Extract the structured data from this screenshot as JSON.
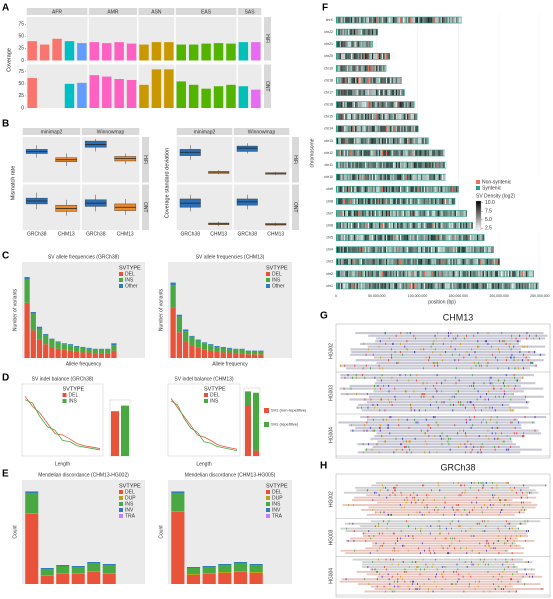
{
  "chart_data": [
    {
      "type": "facet_bar",
      "label": "A",
      "ylabel": "Coverage",
      "rows": [
        "HiFi",
        "ONT"
      ],
      "ylim": [
        0,
        90
      ],
      "yticks": [
        0,
        25,
        50,
        75
      ],
      "facets": [
        {
          "name": "AFR",
          "colors": [
            "#f8766d",
            "#f8766d",
            "#f8766d",
            "#00bfc4",
            "#619cff"
          ],
          "values": [
            [
              40,
              33,
              45,
              40,
              36
            ],
            [
              62,
              0,
              0,
              50,
              52
            ]
          ]
        },
        {
          "name": "AMR",
          "colors": [
            "#ff61c3",
            "#ff61c3",
            "#ff61c3",
            "#ff61c3"
          ],
          "values": [
            [
              38,
              36,
              38,
              35
            ],
            [
              68,
              65,
              60,
              58
            ]
          ]
        },
        {
          "name": "ASN",
          "colors": [
            "#c99800",
            "#c99800",
            "#c99800"
          ],
          "values": [
            [
              33,
              38,
              38
            ],
            [
              48,
              80,
              80
            ]
          ]
        },
        {
          "name": "EAS",
          "colors": [
            "#53b400",
            "#53b400",
            "#53b400",
            "#53b400",
            "#53b400"
          ],
          "values": [
            [
              33,
              33,
              35,
              36,
              35
            ],
            [
              55,
              48,
              40,
              45,
              48
            ]
          ]
        },
        {
          "name": "SAS",
          "colors": [
            "#00c0b8",
            "#e76bf3"
          ],
          "values": [
            [
              38,
              38
            ],
            [
              45,
              38
            ]
          ]
        }
      ]
    },
    {
      "type": "box",
      "label": "B",
      "ylabel": "Mismatch rate",
      "facets": [
        "minimap2",
        "Winnowmap"
      ],
      "categories": [
        "GRCh38",
        "CHM13"
      ],
      "colors": [
        "#2b6fb5",
        "#e8892b"
      ],
      "rows": [
        "HiFi",
        "ONT"
      ],
      "ylim": [
        0,
        10
      ],
      "boxes": [
        [
          [
            [
              5.5,
              6.5,
              7,
              7.5,
              8.5
            ],
            [
              3.5,
              4.5,
              5,
              5.5,
              6.5
            ]
          ],
          [
            [
              7,
              8,
              8.7,
              9.5,
              10
            ],
            [
              4,
              4.7,
              5.3,
              5.8,
              6.5
            ]
          ]
        ],
        [
          [
            [
              4.5,
              5.8,
              6.5,
              7.2,
              8.5
            ],
            [
              3,
              4,
              4.7,
              5.5,
              6.8
            ]
          ],
          [
            [
              4,
              5.2,
              6,
              6.8,
              8
            ],
            [
              3.2,
              4.2,
              5,
              5.8,
              7
            ]
          ]
        ]
      ]
    },
    {
      "type": "box",
      "ylabel": "Coverage standard deviation",
      "facets": [
        "minimap2",
        "Winnowmap"
      ],
      "categories": [
        "GRCh38",
        "CHM13"
      ],
      "colors": [
        "#2b6fb5",
        "#e8892b"
      ],
      "rows": [
        "HiFi",
        "ONT"
      ],
      "ylim": [
        0,
        10
      ],
      "boxes": [
        [
          [
            [
              5,
              6,
              6.8,
              7.5,
              8.5
            ],
            [
              1.5,
              1.7,
              2,
              2.2,
              2.5
            ]
          ],
          [
            [
              6.5,
              7,
              7.8,
              8.3,
              9
            ],
            [
              1.3,
              1.5,
              1.7,
              1.9,
              2.1
            ]
          ]
        ],
        [
          [
            [
              4,
              5,
              6,
              7,
              8
            ],
            [
              0.5,
              0.8,
              1,
              1.2,
              1.5
            ]
          ],
          [
            [
              4.5,
              5.5,
              6.3,
              7,
              8
            ],
            [
              0.5,
              0.7,
              0.9,
              1.1,
              1.3
            ]
          ]
        ]
      ]
    },
    {
      "type": "stacked_bar",
      "label": "C",
      "title": "SV allele frequencies (GRCh38)",
      "xlabel": "Allele frequency",
      "ylabel": "Number of variants",
      "legend_title": "SVTYPE",
      "ylim": [
        0,
        100
      ],
      "series": [
        {
          "name": "DEL",
          "color": "#e8533a",
          "values": [
            60,
            30,
            20,
            15,
            12,
            10,
            9,
            8,
            7,
            6,
            6,
            5,
            5,
            5,
            8
          ]
        },
        {
          "name": "INS",
          "color": "#4aa843",
          "values": [
            25,
            18,
            12,
            10,
            8,
            7,
            6,
            6,
            5,
            5,
            4,
            4,
            4,
            4,
            6
          ]
        },
        {
          "name": "Other",
          "color": "#2e7dbb",
          "values": [
            3,
            2,
            2,
            1,
            1,
            1,
            1,
            1,
            1,
            1,
            1,
            1,
            1,
            1,
            2
          ]
        }
      ]
    },
    {
      "type": "stacked_bar",
      "title": "SV allele frequencies (CHM13)",
      "xlabel": "Allele frequency",
      "ylabel": "Number of variants",
      "legend_title": "SVTYPE",
      "ylim": [
        0,
        100
      ],
      "series": [
        {
          "name": "DEL",
          "color": "#e8533a",
          "values": [
            55,
            28,
            18,
            14,
            11,
            9,
            8,
            7,
            6,
            6,
            5,
            5,
            4,
            4,
            4
          ]
        },
        {
          "name": "INS",
          "color": "#4aa843",
          "values": [
            24,
            17,
            11,
            9,
            8,
            7,
            6,
            5,
            5,
            4,
            4,
            4,
            3,
            3,
            3
          ]
        },
        {
          "name": "Other",
          "color": "#2e7dbb",
          "values": [
            3,
            2,
            2,
            1,
            1,
            1,
            1,
            1,
            1,
            1,
            1,
            1,
            1,
            1,
            1
          ]
        }
      ]
    },
    {
      "type": "line",
      "label": "D",
      "title": "SV indel balance (GRCh38)",
      "xlabel": "Length",
      "legend_title": "SVTYPE",
      "ylim": [
        0,
        100
      ],
      "series": [
        {
          "name": "DEL",
          "color": "#e8533a",
          "values": [
            85,
            70,
            60,
            45,
            30,
            28,
            22,
            15,
            12,
            10,
            8
          ]
        },
        {
          "name": "INS",
          "color": "#4aa843",
          "values": [
            80,
            75,
            55,
            40,
            35,
            20,
            18,
            12,
            10,
            8,
            6
          ]
        }
      ]
    },
    {
      "type": "line",
      "title": "SV indel balance (CHM13)",
      "xlabel": "Length",
      "legend_title": "SVTYPE",
      "ylim": [
        0,
        100
      ],
      "series": [
        {
          "name": "DEL",
          "color": "#e8533a",
          "values": [
            82,
            68,
            55,
            42,
            28,
            25,
            20,
            14,
            11,
            9,
            7
          ]
        },
        {
          "name": "INS",
          "color": "#4aa843",
          "values": [
            78,
            72,
            52,
            38,
            32,
            18,
            16,
            11,
            9,
            7,
            5
          ]
        }
      ]
    },
    {
      "type": "small_bar",
      "ylim": [
        0,
        100
      ],
      "series": [
        {
          "name": "SVs (non-repetitive)",
          "color": "#e8533a",
          "values": [
            80,
            0
          ]
        },
        {
          "name": "SVs (repetitive)",
          "color": "#4aa843",
          "values": [
            0,
            90
          ]
        }
      ]
    },
    {
      "type": "small_bar",
      "ylim": [
        0,
        100
      ],
      "series": [
        {
          "name": "SVs (non-repetitive)",
          "color": "#e8533a",
          "values": [
            75,
            8
          ]
        },
        {
          "name": "SVs (repetitive)",
          "color": "#4aa843",
          "values": [
            20,
            85
          ]
        }
      ]
    },
    {
      "type": "stacked_bar",
      "label": "E",
      "title": "Mendelian discordance (CHM13-HG002)",
      "ylabel": "Count",
      "legend_title": "SVTYPE",
      "ylim": [
        0,
        100
      ],
      "series": [
        {
          "name": "DEL",
          "color": "#e8533a",
          "values": [
            70,
            8,
            10,
            10,
            12,
            10
          ]
        },
        {
          "name": "DUP",
          "color": "#b7a21b",
          "values": [
            1,
            1,
            1,
            1,
            1,
            1
          ]
        },
        {
          "name": "INS",
          "color": "#4aa843",
          "values": [
            20,
            6,
            7,
            6,
            8,
            8
          ]
        },
        {
          "name": "INV",
          "color": "#2e7dbb",
          "values": [
            1,
            1,
            1,
            1,
            1,
            1
          ]
        },
        {
          "name": "TRA",
          "color": "#c77cff",
          "values": [
            1,
            0,
            0,
            0,
            0,
            0
          ]
        }
      ]
    },
    {
      "type": "stacked_bar",
      "title": "Mendelian discordance (CHM13-HG005)",
      "ylabel": "Count",
      "legend_title": "SVTYPE",
      "ylim": [
        0,
        100
      ],
      "series": [
        {
          "name": "DEL",
          "color": "#e8533a",
          "values": [
            72,
            9,
            10,
            11,
            12,
            11
          ]
        },
        {
          "name": "DUP",
          "color": "#b7a21b",
          "values": [
            1,
            1,
            1,
            1,
            1,
            1
          ]
        },
        {
          "name": "INS",
          "color": "#4aa843",
          "values": [
            18,
            6,
            6,
            7,
            8,
            7
          ]
        },
        {
          "name": "INV",
          "color": "#2e7dbb",
          "values": [
            1,
            1,
            1,
            1,
            1,
            1
          ]
        },
        {
          "name": "TRA",
          "color": "#c77cff",
          "values": [
            1,
            0,
            0,
            0,
            0,
            0
          ]
        }
      ]
    },
    {
      "type": "ideogram",
      "label": "F",
      "xlabel": "position (bp)",
      "ylabel": "chromosome",
      "categories": [
        "chrX",
        "chr22",
        "chr21",
        "chr20",
        "chr19",
        "chr18",
        "chr17",
        "chr16",
        "chr15",
        "chr14",
        "chr13",
        "chr12",
        "chr11",
        "chr10",
        "chr9",
        "chr8",
        "chr7",
        "chr6",
        "chr5",
        "chr4",
        "chr3",
        "chr2",
        "chr1"
      ],
      "values": [
        154259566,
        51324926,
        45090682,
        66210255,
        61707364,
        80542538,
        84276897,
        96330374,
        99753195,
        101161492,
        113566686,
        133324548,
        135127769,
        134758134,
        150617247,
        146259331,
        160567428,
        172126628,
        182045439,
        193574945,
        201105948,
        242696752,
        248387328
      ],
      "xlim": [
        0,
        260000000
      ],
      "xticks": [
        0,
        {
          "value": 50000000,
          "label": "50,000,000"
        },
        {
          "value": 100000000,
          "label": "100,000,000"
        },
        {
          "value": 150000000,
          "label": "150,000,000"
        },
        {
          "value": 200000000,
          "label": "200,000,000"
        },
        {
          "value": 250000000,
          "label": "250,000,000"
        }
      ],
      "series": [
        {
          "name": "Non-syntenic",
          "color": "#e8705a"
        },
        {
          "name": "Syntenic",
          "color": "#2aa18a"
        }
      ],
      "density_title": "SV Density (log2)",
      "density_ticks": [
        {
          "value": 10,
          "label": "10.0"
        },
        7.5,
        {
          "value": 5,
          "label": "5.0"
        },
        2.5
      ]
    },
    {
      "type": "pileup",
      "label": "G",
      "title": "CHM13",
      "tracks": [
        "HG002",
        "HG003",
        "HG004"
      ]
    },
    {
      "type": "pileup",
      "label": "H",
      "title": "GRCh38",
      "tracks": [
        "HG002",
        "HG003",
        "HG004"
      ]
    }
  ]
}
